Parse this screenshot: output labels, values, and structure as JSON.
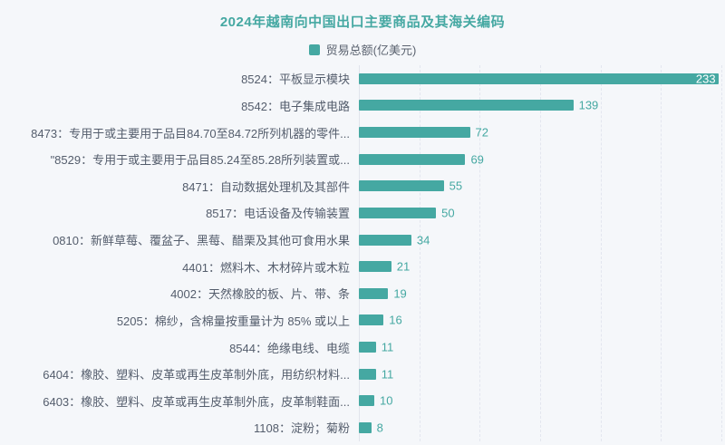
{
  "header": {
    "title": "2024年越南向中国出口主要商品及其海关编码",
    "legend_label": "贸易总额(亿美元)"
  },
  "colors": {
    "background": "#f5f7fa",
    "accent_teal": "#45a8a2",
    "category_text": "#545d6c",
    "legend_text": "#5b6370",
    "value_inside_text": "#ffffff",
    "gridline": "#e3e6ef",
    "axis_line": "#e1e4ec"
  },
  "chart_data": {
    "type": "bar",
    "orientation": "horizontal",
    "title": "2024年越南向中国出口主要商品及其海关编码",
    "series_name": "贸易总额(亿美元)",
    "categories": [
      "8524：平板显示模块",
      "8542：电子集成电路",
      "8473：专用于或主要用于品目84.70至84.72所列机器的零件...",
      "\"8529：专用于或主要用于品目85.24至85.28所列装置或...",
      "8471：自动数据处理机及其部件",
      "8517：电话设备及传输装置",
      "0810：新鲜草莓、覆盆子、黑莓、醋栗及其他可食用水果",
      "4401：燃料木、木材碎片或木粒",
      "4002：天然橡胶的板、片、带、条",
      "5205：棉纱，含棉量按重量计为 85% 或以上",
      "8544：绝缘电线、电缆",
      "6404：橡胶、塑料、皮革或再生皮革制外底，用纺织材料...",
      "6403：橡胶、塑料、皮革或再生皮革制外底，皮革制鞋面...",
      "1108：淀粉；菊粉"
    ],
    "values": [
      233,
      139,
      72,
      69,
      55,
      50,
      34,
      21,
      19,
      16,
      11,
      11,
      10,
      8
    ],
    "xlim": [
      0,
      235
    ],
    "gridline_count": 6,
    "grid": "vertical-dashed",
    "legend_position": "top",
    "value_labels": "end-of-bar"
  }
}
